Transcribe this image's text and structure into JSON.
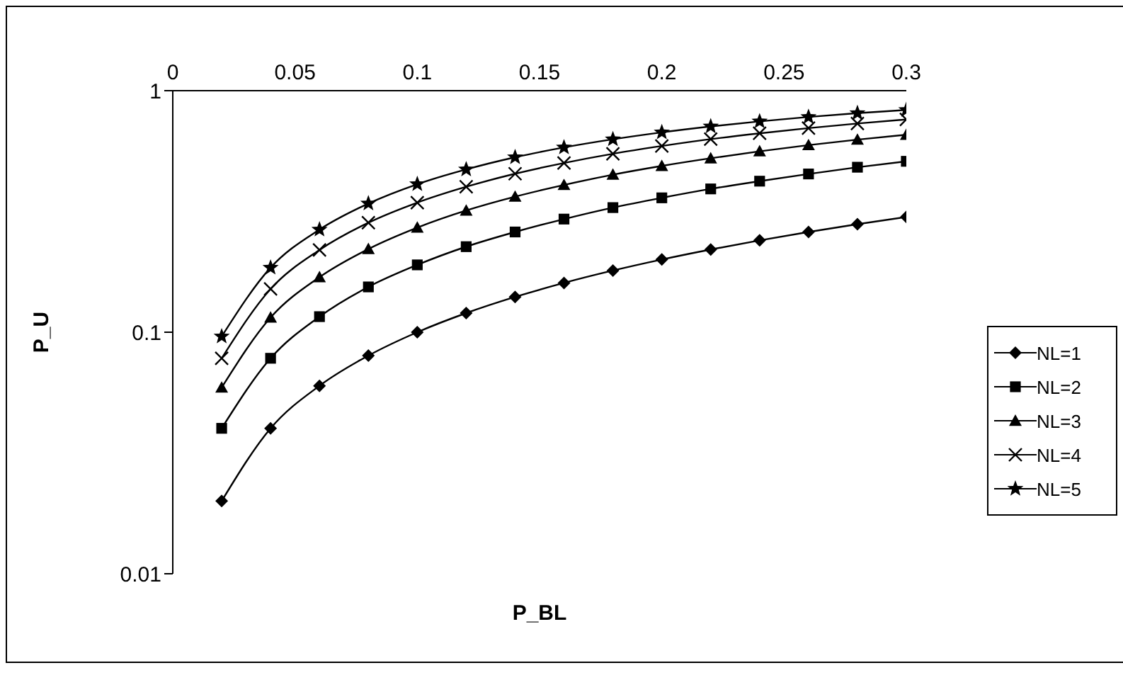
{
  "chart_data": {
    "type": "line",
    "xlabel": "P_BL",
    "ylabel": "P_U",
    "x": [
      0.02,
      0.04,
      0.06,
      0.08,
      0.1,
      0.12,
      0.14,
      0.16,
      0.18,
      0.2,
      0.22,
      0.24,
      0.26,
      0.28,
      0.3
    ],
    "series": [
      {
        "name": "NL=1",
        "color": "#000000",
        "marker": "diamond",
        "values": [
          0.02,
          0.04,
          0.06,
          0.08,
          0.1,
          0.12,
          0.14,
          0.16,
          0.18,
          0.2,
          0.22,
          0.24,
          0.26,
          0.28,
          0.3
        ]
      },
      {
        "name": "NL=2",
        "color": "#000000",
        "marker": "square",
        "values": [
          0.04,
          0.078,
          0.116,
          0.154,
          0.19,
          0.226,
          0.26,
          0.294,
          0.328,
          0.36,
          0.392,
          0.422,
          0.452,
          0.482,
          0.51
        ]
      },
      {
        "name": "NL=3",
        "color": "#000000",
        "marker": "triangle",
        "values": [
          0.059,
          0.115,
          0.169,
          0.221,
          0.271,
          0.319,
          0.364,
          0.407,
          0.449,
          0.488,
          0.525,
          0.561,
          0.595,
          0.627,
          0.657
        ]
      },
      {
        "name": "NL=4",
        "color": "#000000",
        "marker": "cross",
        "values": [
          0.078,
          0.151,
          0.219,
          0.284,
          0.344,
          0.4,
          0.453,
          0.502,
          0.548,
          0.59,
          0.63,
          0.666,
          0.7,
          0.731,
          0.76
        ]
      },
      {
        "name": "NL=5",
        "color": "#000000",
        "marker": "star",
        "values": [
          0.096,
          0.185,
          0.266,
          0.341,
          0.41,
          0.472,
          0.53,
          0.582,
          0.629,
          0.672,
          0.711,
          0.746,
          0.778,
          0.807,
          0.832
        ]
      }
    ],
    "xlim": [
      0,
      0.3
    ],
    "xticks": [
      0,
      0.05,
      0.1,
      0.15,
      0.2,
      0.25,
      0.3
    ],
    "ylim": [
      0.01,
      1
    ],
    "yticks": [
      0.01,
      0.1,
      1
    ],
    "log": "y",
    "grid": false,
    "legend": "right"
  }
}
